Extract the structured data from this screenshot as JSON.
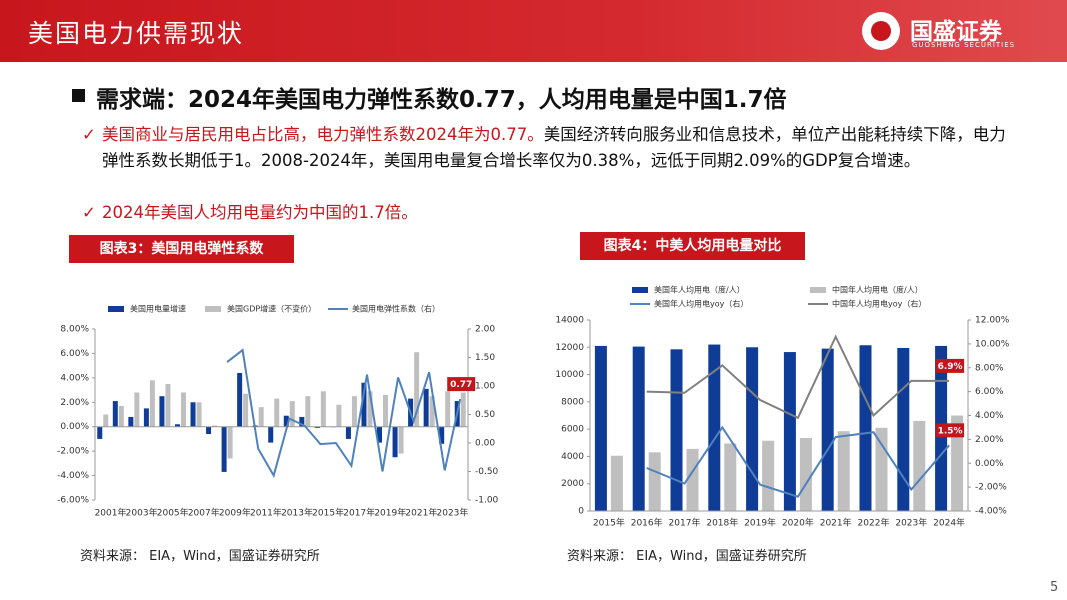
{
  "header": {
    "title": "美国电力供需现状",
    "logo": "国盛证券",
    "logo_sub": "GUOSHENG SECURITIES"
  },
  "headline": "需求端：2024年美国电力弹性系数0.77，人均用电量是中国1.7倍",
  "bullets": [
    {
      "red": "美国商业与居民用电占比高，电力弹性系数2024年为0.77。",
      "text": "美国经济转向服务业和信息技术，单位产出能耗持续下降，电力弹性系数长期低于1。2008-2024年，美国用电量复合增长率仅为0.38%，远低于同期2.09%的GDP复合增速。"
    },
    {
      "red": "2024年美国人均用电量约为中国的1.7倍。",
      "text": ""
    }
  ],
  "chart_data": [
    {
      "type": "bar",
      "title": "图表3：美国用电弹性系数",
      "categories": [
        "2001年",
        null,
        "2003年",
        null,
        "2005年",
        null,
        "2007年",
        null,
        "2009年",
        null,
        "2011年",
        null,
        "2013年",
        null,
        "2015年",
        null,
        "2017年",
        null,
        "2019年",
        null,
        "2021年",
        null,
        "2023年",
        null
      ],
      "series": [
        {
          "name": "美国用电量增速",
          "type": "bar",
          "color": "#0f3c96",
          "values": [
            -1.0,
            2.1,
            0.8,
            1.5,
            2.5,
            0.2,
            2.0,
            -0.6,
            -3.7,
            4.4,
            0.1,
            -1.3,
            0.9,
            0.8,
            -0.1,
            0.0,
            -1.0,
            3.6,
            -1.3,
            -2.5,
            2.3,
            3.1,
            -1.4,
            2.1
          ]
        },
        {
          "name": "美国GDP增速（不变价）",
          "type": "bar",
          "color": "#bfbfbf",
          "values": [
            1.0,
            1.7,
            2.8,
            3.8,
            3.5,
            2.8,
            2.0,
            0.1,
            -2.6,
            2.7,
            1.6,
            2.3,
            2.1,
            2.5,
            2.9,
            1.8,
            2.5,
            2.9,
            2.6,
            -2.2,
            6.1,
            2.5,
            2.9,
            2.8
          ]
        },
        {
          "name": "美国用电弹性系数（右）",
          "type": "line",
          "axis": "y2",
          "color": "#4f81bd",
          "values": [
            null,
            null,
            null,
            null,
            null,
            null,
            null,
            null,
            1.42,
            1.63,
            -0.1,
            -0.57,
            0.43,
            0.3,
            -0.02,
            0.0,
            -0.4,
            1.2,
            -0.5,
            1.15,
            0.38,
            1.24,
            -0.48,
            0.77
          ],
          "value_labels": [
            null,
            null,
            null,
            null,
            null,
            null,
            null,
            null,
            null,
            null,
            null,
            null,
            null,
            null,
            null,
            null,
            null,
            null,
            null,
            null,
            null,
            null,
            null,
            "0.77"
          ]
        }
      ],
      "ylim": [
        -6,
        8
      ],
      "yticks": [
        {
          "value": -6,
          "label": "-6.00%"
        },
        {
          "value": -4,
          "label": "-4.00%"
        },
        {
          "value": -2,
          "label": "-2.00%"
        },
        {
          "value": 0,
          "label": "0.00%"
        },
        {
          "value": 2,
          "label": "2.00%"
        },
        {
          "value": 4,
          "label": "4.00%"
        },
        {
          "value": 6,
          "label": "6.00%"
        },
        {
          "value": 8,
          "label": "8.00%"
        }
      ],
      "y2lim": [
        -1,
        2
      ],
      "y2ticks": [
        {
          "value": -1,
          "label": "-1.00"
        },
        {
          "value": -0.5,
          "label": "-0.50"
        },
        {
          "value": 0,
          "label": "0.00"
        },
        {
          "value": 0.5,
          "label": "0.50"
        },
        {
          "value": 1,
          "label": "1.00"
        },
        {
          "value": 1.5,
          "label": "1.50"
        },
        {
          "value": 2,
          "label": "2.00"
        }
      ],
      "grid": false,
      "legend": "top",
      "source": "资料来源： EIA，Wind，国盛证券研究所"
    },
    {
      "type": "bar",
      "title": "图表4：中美人均用电量对比",
      "categories": [
        "2015年",
        "2016年",
        "2017年",
        "2018年",
        "2019年",
        "2020年",
        "2021年",
        "2022年",
        "2023年",
        "2024年"
      ],
      "series": [
        {
          "name": "美国年人均用电（度/人）",
          "type": "bar",
          "color": "#0f3c96",
          "values": [
            12100,
            12050,
            11850,
            12200,
            12000,
            11650,
            11900,
            12150,
            11950,
            12100
          ]
        },
        {
          "name": "中国年人均用电（度/人）",
          "type": "bar",
          "color": "#bfbfbf",
          "values": [
            4050,
            4300,
            4550,
            4950,
            5150,
            5350,
            5850,
            6100,
            6600,
            7000
          ]
        },
        {
          "name": "美国年人均用电yoy（右）",
          "type": "line",
          "axis": "y2",
          "color": "#4f81bd",
          "values": [
            null,
            -0.4,
            -1.7,
            3.0,
            -1.8,
            -2.8,
            2.2,
            2.6,
            -2.2,
            1.5
          ],
          "value_labels": [
            null,
            null,
            null,
            null,
            null,
            null,
            null,
            null,
            null,
            "1.5%"
          ]
        },
        {
          "name": "中国年人均用电yoy（右）",
          "type": "line",
          "axis": "y2",
          "color": "#808080",
          "values": [
            null,
            6.0,
            5.9,
            8.2,
            5.3,
            3.8,
            10.6,
            4.0,
            6.9,
            6.9
          ],
          "value_labels": [
            null,
            null,
            null,
            null,
            null,
            null,
            null,
            null,
            null,
            "6.9%"
          ]
        }
      ],
      "ylim": [
        0,
        14000
      ],
      "yticks": [
        0,
        2000,
        4000,
        6000,
        8000,
        10000,
        12000,
        14000
      ],
      "y2lim": [
        -4,
        12
      ],
      "y2ticks": [
        {
          "value": -4,
          "label": "-4.00%"
        },
        {
          "value": -2,
          "label": "-2.00%"
        },
        {
          "value": 0,
          "label": "0.00%"
        },
        {
          "value": 2,
          "label": "2.00%"
        },
        {
          "value": 4,
          "label": "4.00%"
        },
        {
          "value": 6,
          "label": "6.00%"
        },
        {
          "value": 8,
          "label": "8.00%"
        },
        {
          "value": 10,
          "label": "10.00%"
        },
        {
          "value": 12,
          "label": "12.00%"
        }
      ],
      "grid": false,
      "legend": "top",
      "source": "资料来源： EIA，Wind，国盛证券研究所"
    }
  ],
  "page_number": "5"
}
